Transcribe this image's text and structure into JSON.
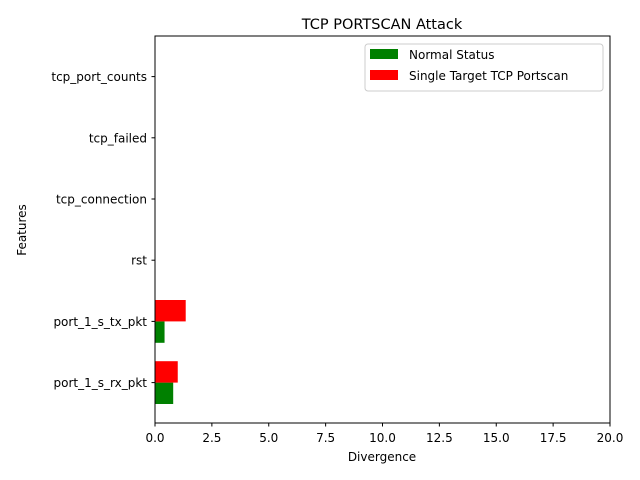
{
  "chart_data": {
    "type": "bar",
    "orientation": "horizontal",
    "title": "TCP PORTSCAN Attack",
    "xlabel": "Divergence",
    "ylabel": "Features",
    "categories": [
      "port_1_s_rx_pkt",
      "port_1_s_tx_pkt",
      "rst",
      "tcp_connection",
      "tcp_failed",
      "tcp_port_counts"
    ],
    "series": [
      {
        "name": "Normal Status",
        "color": "#008000",
        "values": [
          0.8,
          0.42,
          0,
          0,
          0,
          0
        ]
      },
      {
        "name": "Single Target TCP Portscan",
        "color": "#ff0000",
        "values": [
          1.0,
          1.35,
          0,
          0,
          0,
          0
        ]
      }
    ],
    "xlim": [
      0,
      20
    ],
    "xticks": [
      "0.0",
      "2.5",
      "5.0",
      "7.5",
      "10.0",
      "12.5",
      "15.0",
      "17.5",
      "20.0"
    ],
    "grid": false,
    "legend_position": "top-right"
  }
}
